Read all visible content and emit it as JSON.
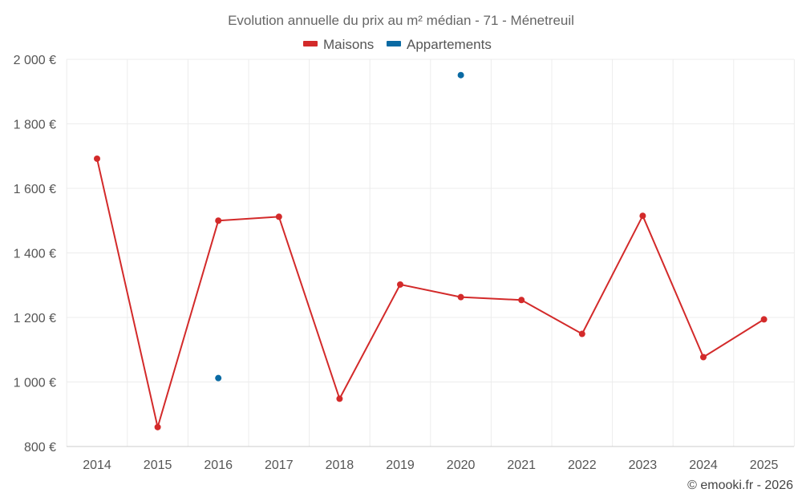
{
  "chart_data": {
    "type": "line",
    "title": "Evolution annuelle du prix au m² médian - 71 - Ménetreuil",
    "categories": [
      "2014",
      "2015",
      "2016",
      "2017",
      "2018",
      "2019",
      "2020",
      "2021",
      "2022",
      "2023",
      "2024",
      "2025"
    ],
    "y_ticks": [
      "800 €",
      "1 000 €",
      "1 200 €",
      "1 400 €",
      "1 600 €",
      "1 800 €",
      "2 000 €"
    ],
    "y_tick_values": [
      800,
      1000,
      1200,
      1400,
      1600,
      1800,
      2000
    ],
    "ylim": [
      800,
      2000
    ],
    "grid": true,
    "legend_position": "top-center",
    "series": [
      {
        "name": "Maisons",
        "color": "#d32a2a",
        "mode": "line+markers",
        "values": [
          1692,
          860,
          1500,
          1512,
          948,
          1302,
          1263,
          1254,
          1149,
          1515,
          1077,
          1194
        ]
      },
      {
        "name": "Appartements",
        "color": "#0a6aa3",
        "mode": "markers",
        "values": [
          null,
          null,
          1012,
          null,
          null,
          null,
          1951,
          null,
          null,
          null,
          null,
          null
        ]
      }
    ]
  },
  "credit": "© emooki.fr - 2026"
}
